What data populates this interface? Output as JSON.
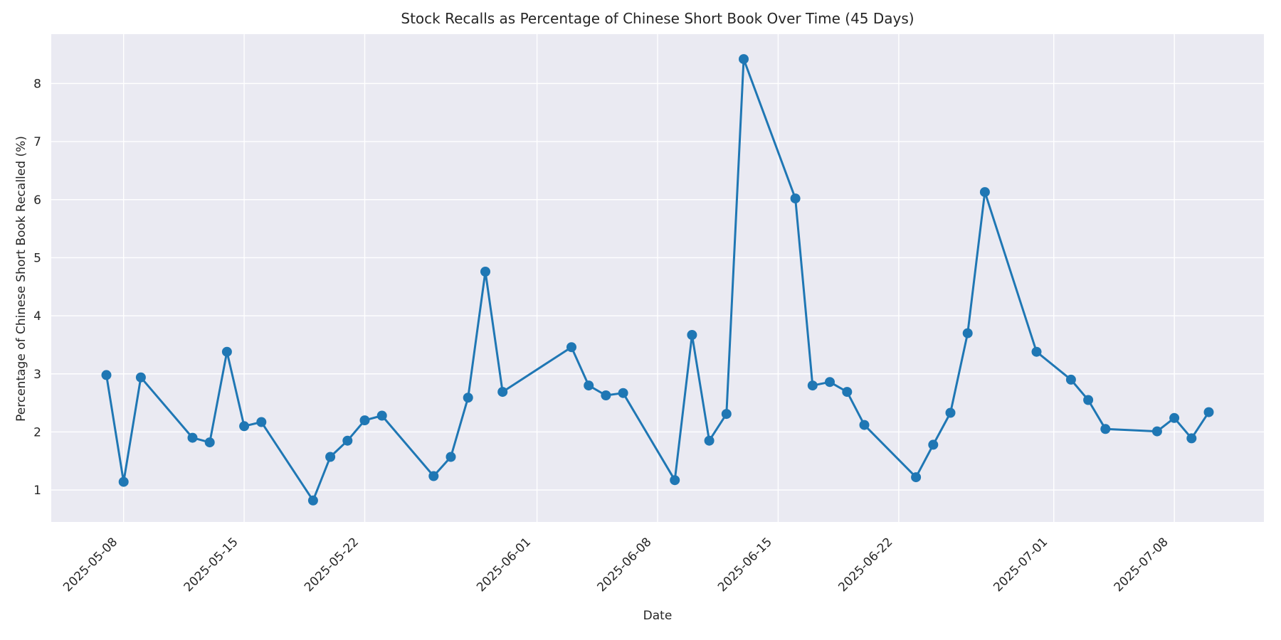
{
  "figure": {
    "title": "Stock Recalls as Percentage of Chinese Short Book Over Time (45 Days)",
    "xlabel": "Date",
    "ylabel": "Percentage of Chinese Short Book Recalled (%)"
  },
  "chart_data": {
    "type": "line",
    "title": "Stock Recalls as Percentage of Chinese Short Book Over Time (45 Days)",
    "xlabel": "Date",
    "ylabel": "Percentage of Chinese Short Book Recalled (%)",
    "legend_position": "none",
    "grid": true,
    "background_color": "#eaeaf2",
    "gridline_color": "#ffffff",
    "line_color": "#1f77b4",
    "marker_color": "#1f77b4",
    "text_color": "#262626",
    "marker_radius": 7,
    "line_width": 3,
    "x": [
      "2025-05-07",
      "2025-05-08",
      "2025-05-09",
      "2025-05-12",
      "2025-05-13",
      "2025-05-14",
      "2025-05-15",
      "2025-05-16",
      "2025-05-19",
      "2025-05-20",
      "2025-05-21",
      "2025-05-22",
      "2025-05-23",
      "2025-05-26",
      "2025-05-27",
      "2025-05-28",
      "2025-05-29",
      "2025-05-30",
      "2025-06-03",
      "2025-06-04",
      "2025-06-05",
      "2025-06-06",
      "2025-06-09",
      "2025-06-10",
      "2025-06-11",
      "2025-06-12",
      "2025-06-13",
      "2025-06-16",
      "2025-06-17",
      "2025-06-18",
      "2025-06-19",
      "2025-06-20",
      "2025-06-23",
      "2025-06-24",
      "2025-06-25",
      "2025-06-26",
      "2025-06-27",
      "2025-06-30",
      "2025-07-02",
      "2025-07-03",
      "2025-07-04",
      "2025-07-07",
      "2025-07-08",
      "2025-07-09",
      "2025-07-10"
    ],
    "values": [
      2.98,
      1.14,
      2.94,
      1.9,
      1.82,
      3.38,
      2.1,
      2.17,
      0.82,
      1.57,
      1.85,
      2.2,
      2.28,
      1.24,
      1.57,
      2.59,
      4.76,
      2.69,
      3.46,
      2.8,
      2.63,
      2.67,
      1.17,
      3.67,
      1.85,
      2.31,
      8.42,
      6.02,
      2.8,
      2.86,
      2.69,
      2.12,
      1.22,
      1.78,
      2.33,
      3.7,
      6.13,
      3.38,
      2.9,
      2.55,
      2.05,
      2.01,
      2.24,
      1.89,
      2.34
    ],
    "x_tick_labels": [
      "2025-05-08",
      "2025-05-15",
      "2025-05-22",
      "2025-06-01",
      "2025-06-08",
      "2025-06-15",
      "2025-06-22",
      "2025-07-01",
      "2025-07-08"
    ],
    "y_tick_labels": [
      "1",
      "2",
      "3",
      "4",
      "5",
      "6",
      "7",
      "8"
    ],
    "xlim_days": [
      -3.2,
      67.2
    ],
    "ylim": [
      0.45,
      8.85
    ]
  }
}
